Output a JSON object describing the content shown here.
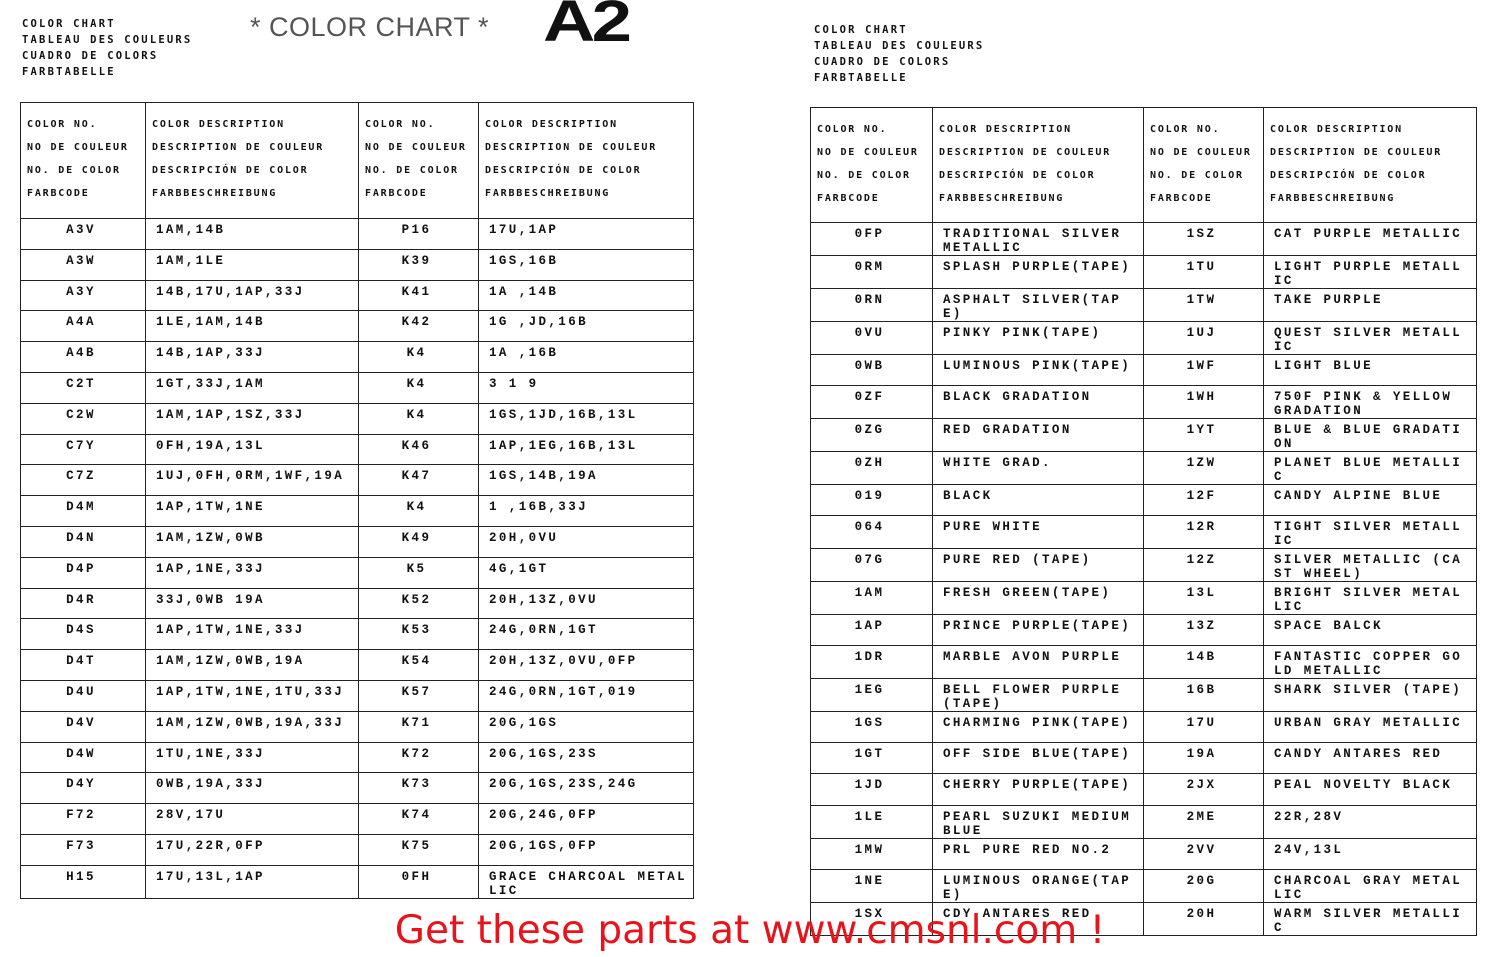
{
  "overlay_title": "* COLOR CHART *",
  "logo": "A2",
  "left": {
    "titles": [
      "COLOR CHART",
      "TABLEAU DES COULEURS",
      "CUADRO DE COLORS",
      "FARBTABELLE"
    ],
    "headers": {
      "color_no": [
        "COLOR NO.",
        "NO DE COULEUR",
        "NO. DE COLOR",
        "FARBCODE"
      ],
      "color_desc": [
        "COLOR DESCRIPTION",
        "DESCRIPTION DE COULEUR",
        "DESCRIPCIÓN DE COLOR",
        "FARBBESCHREIBUNG"
      ]
    },
    "rows": [
      [
        "A3V",
        "1AM,14B",
        "P16",
        "17U,1AP"
      ],
      [
        "A3W",
        "1AM,1LE",
        "K39",
        "1GS,16B"
      ],
      [
        "A3Y",
        "14B,17U,1AP,33J",
        "K41",
        "1A ,14B"
      ],
      [
        "A4A",
        "1LE,1AM,14B",
        "K42",
        "1G ,JD,16B"
      ],
      [
        "A4B",
        "14B,1AP,33J",
        "K4",
        "1A  ,16B"
      ],
      [
        "C2T",
        "1GT,33J,1AM",
        "K4",
        "3  1  9"
      ],
      [
        "C2W",
        "1AM,1AP,1SZ,33J",
        "K4",
        "1GS,1JD,16B,13L"
      ],
      [
        "C7Y",
        "0FH,19A,13L",
        "K46",
        "1AP,1EG,16B,13L"
      ],
      [
        "C7Z",
        "1UJ,0FH,0RM,1WF,19A",
        "K47",
        "1GS,14B,19A"
      ],
      [
        "D4M",
        "1AP,1TW,1NE",
        "K4",
        "1 ,16B,33J"
      ],
      [
        "D4N",
        "1AM,1ZW,0WB",
        "K49",
        "20H,0VU"
      ],
      [
        "D4P",
        "1AP,1NE,33J",
        "K5",
        "4G,1GT"
      ],
      [
        "D4R",
        "33J,0WB 19A",
        "K52",
        "20H,13Z,0VU"
      ],
      [
        "D4S",
        "1AP,1TW,1NE,33J",
        "K53",
        "24G,0RN,1GT"
      ],
      [
        "D4T",
        "1AM,1ZW,0WB,19A",
        "K54",
        "20H,13Z,0VU,0FP"
      ],
      [
        "D4U",
        "1AP,1TW,1NE,1TU,33J",
        "K57",
        "24G,0RN,1GT,019"
      ],
      [
        "D4V",
        "1AM,1ZW,0WB,19A,33J",
        "K71",
        "20G,1GS"
      ],
      [
        "D4W",
        "1TU,1NE,33J",
        "K72",
        "20G,1GS,23S"
      ],
      [
        "D4Y",
        "0WB,19A,33J",
        "K73",
        "20G,1GS,23S,24G"
      ],
      [
        "F72",
        "28V,17U",
        "K74",
        "20G,24G,0FP"
      ],
      [
        "F73",
        "17U,22R,0FP",
        "K75",
        "20G,1GS,0FP"
      ],
      [
        "H15",
        "17U,13L,1AP",
        "0FH",
        "GRACE CHARCOAL METALLIC"
      ]
    ]
  },
  "right": {
    "titles": [
      "COLOR CHART",
      "TABLEAU DES COULEURS",
      "CUADRO DE COLORS",
      "FARBTABELLE"
    ],
    "headers": {
      "color_no": [
        "COLOR NO.",
        "NO DE COULEUR",
        "NO. DE COLOR",
        "FARBCODE"
      ],
      "color_desc": [
        "COLOR DESCRIPTION",
        "DESCRIPTION DE COULEUR",
        "DESCRIPCIÓN DE COLOR",
        "FARBBESCHREIBUNG"
      ]
    },
    "rows": [
      [
        "0FP",
        "TRADITIONAL SILVER METALLIC",
        "1SZ",
        "CAT PURPLE METALLIC"
      ],
      [
        "0RM",
        "SPLASH PURPLE(TAPE)",
        "1TU",
        "LIGHT PURPLE METALLIC"
      ],
      [
        "0RN",
        "ASPHALT SILVER(TAPE)",
        "1TW",
        "TAKE PURPLE"
      ],
      [
        "0VU",
        "PINKY PINK(TAPE)",
        "1UJ",
        "QUEST SILVER METALLIC"
      ],
      [
        "0WB",
        "LUMINOUS PINK(TAPE)",
        "1WF",
        "LIGHT BLUE"
      ],
      [
        "0ZF",
        "BLACK GRADATION",
        "1WH",
        "750F PINK & YELLOW GRADATION"
      ],
      [
        "0ZG",
        "RED GRADATION",
        "1YT",
        "BLUE & BLUE GRADATION"
      ],
      [
        "0ZH",
        "WHITE GRAD.",
        "1ZW",
        "PLANET BLUE METALLIC"
      ],
      [
        "019",
        "BLACK",
        "12F",
        "CANDY ALPINE BLUE"
      ],
      [
        "064",
        "PURE WHITE",
        "12R",
        "TIGHT SILVER METALLIC"
      ],
      [
        "07G",
        "PURE RED (TAPE)",
        "12Z",
        "SILVER METALLIC (CAST WHEEL)"
      ],
      [
        "1AM",
        "FRESH GREEN(TAPE)",
        "13L",
        "BRIGHT SILVER METALLIC"
      ],
      [
        "1AP",
        "PRINCE PURPLE(TAPE)",
        "13Z",
        "SPACE BALCK"
      ],
      [
        "1DR",
        "MARBLE AVON PURPLE",
        "14B",
        "FANTASTIC COPPER GOLD METALLIC"
      ],
      [
        "1EG",
        "BELL FLOWER PURPLE(TAPE)",
        "16B",
        "SHARK SILVER (TAPE)"
      ],
      [
        "1GS",
        "CHARMING PINK(TAPE)",
        "17U",
        "URBAN GRAY METALLIC"
      ],
      [
        "1GT",
        "OFF SIDE BLUE(TAPE)",
        "19A",
        "CANDY ANTARES RED"
      ],
      [
        "1JD",
        "CHERRY PURPLE(TAPE)",
        "2JX",
        "PEAL NOVELTY BLACK"
      ],
      [
        "1LE",
        "PEARL SUZUKI MEDIUM BLUE",
        "2ME",
        "22R,28V"
      ],
      [
        "1MW",
        "PRL PURE RED NO.2",
        "2VV",
        "24V,13L"
      ],
      [
        "1NE",
        "LUMINOUS ORANGE(TAPE)",
        "20G",
        "CHARCOAL GRAY METALLIC"
      ],
      [
        "1SX",
        "CDY ANTARES RED",
        "20H",
        "WARM SILVER METALLIC"
      ]
    ]
  },
  "footer": "Get these parts at www.cmsnl.com !",
  "colors": {
    "footer": "#e8141b",
    "overlay_title": "#555555"
  }
}
